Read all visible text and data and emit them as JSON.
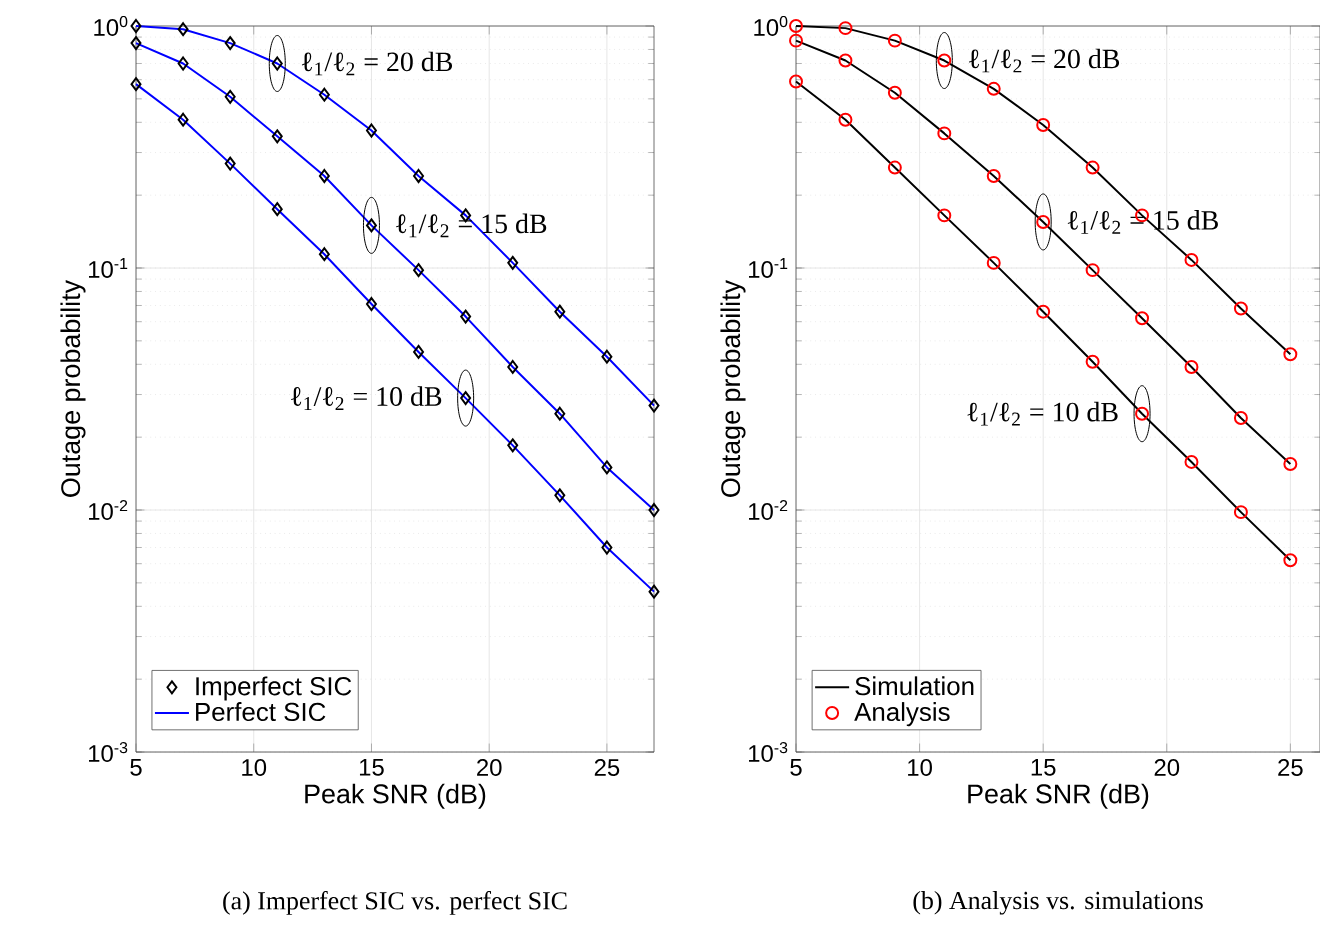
{
  "chart_data": [
    {
      "type": "line",
      "xlabel": "Peak SNR (dB)",
      "ylabel": "Outage probability",
      "log": "y",
      "grid": true,
      "legend": "bottom left",
      "xlim": [
        5,
        27
      ],
      "ylim": [
        0.001,
        1
      ],
      "xticks": [
        5,
        10,
        15,
        20,
        25
      ],
      "yticks": [
        {
          "value": 0.001,
          "label": "10$^{-3}$"
        },
        {
          "value": 0.01,
          "label": "10$^{-2}$"
        },
        {
          "value": 0.1,
          "label": "10$^{-1}$"
        },
        {
          "value": 1,
          "label": "10$^{0}$"
        }
      ],
      "x": [
        5,
        7,
        9,
        11,
        13,
        15,
        17,
        19,
        21,
        23,
        25,
        27
      ],
      "series": [
        {
          "name": "Imperfect SIC",
          "type": "scatter",
          "marker": "diamond",
          "color": "#000000",
          "values": [
            1.0,
            0.97,
            0.85,
            0.7,
            0.52,
            0.37,
            0.24,
            0.165,
            0.105,
            0.066,
            0.043,
            0.027
          ]
        },
        {
          "type": "scatter",
          "marker": "diamond",
          "color": "#000000",
          "values": [
            0.85,
            0.7,
            0.51,
            0.35,
            0.24,
            0.15,
            0.098,
            0.063,
            0.039,
            0.025,
            0.015,
            0.01
          ]
        },
        {
          "type": "scatter",
          "marker": "diamond",
          "color": "#000000",
          "values": [
            0.575,
            0.41,
            0.27,
            0.175,
            0.114,
            0.071,
            0.045,
            0.029,
            0.0185,
            0.0115,
            0.007,
            0.0046
          ]
        },
        {
          "name": "Perfect SIC",
          "marker": "none",
          "color": "#0000ff",
          "values": [
            1.0,
            0.97,
            0.85,
            0.7,
            0.52,
            0.37,
            0.24,
            0.165,
            0.105,
            0.066,
            0.043,
            0.027
          ]
        },
        {
          "marker": "none",
          "color": "#0000ff",
          "values": [
            0.85,
            0.7,
            0.51,
            0.35,
            0.24,
            0.15,
            0.098,
            0.063,
            0.039,
            0.025,
            0.015,
            0.01
          ]
        },
        {
          "marker": "none",
          "color": "#0000ff",
          "values": [
            0.575,
            0.41,
            0.27,
            0.175,
            0.114,
            0.071,
            0.045,
            0.029,
            0.0185,
            0.0115,
            0.007,
            0.0046
          ]
        }
      ],
      "annotations": [
        {
          "text": "ℓ$_{1}$/ℓ$_{2}$ = 20 dB",
          "x": 11,
          "y": 0.7
        },
        {
          "text": "ℓ$_{1}$/ℓ$_{2}$ = 15 dB",
          "x": 15,
          "y": 0.15
        },
        {
          "text": "ℓ$_{1}$/ℓ$_{2}$ = 10 dB",
          "x": 19,
          "y": 0.029
        },
        "(a) Imperfect SIC vs. perfect SIC"
      ]
    },
    {
      "type": "line",
      "xlabel": "Peak SNR (dB)",
      "ylabel": "Outage probability",
      "log": "y",
      "grid": true,
      "legend": "bottom left",
      "xlim": [
        5,
        26.2
      ],
      "ylim": [
        0.001,
        1
      ],
      "xticks": [
        5,
        10,
        15,
        20,
        25
      ],
      "yticks": [
        {
          "value": 0.001,
          "label": "10$^{-3}$"
        },
        {
          "value": 0.01,
          "label": "10$^{-2}$"
        },
        {
          "value": 0.1,
          "label": "10$^{-1}$"
        },
        {
          "value": 1,
          "label": "10$^{0}$"
        }
      ],
      "x": [
        5,
        7,
        9,
        11,
        13,
        15,
        17,
        19,
        21,
        23,
        25
      ],
      "series": [
        {
          "name": "Simulation",
          "marker": "none",
          "color": "#000000",
          "values": [
            1.0,
            0.98,
            0.87,
            0.72,
            0.55,
            0.39,
            0.26,
            0.165,
            0.108,
            0.068,
            0.044
          ]
        },
        {
          "marker": "none",
          "color": "#000000",
          "values": [
            0.87,
            0.72,
            0.53,
            0.36,
            0.24,
            0.155,
            0.098,
            0.062,
            0.039,
            0.024,
            0.0155
          ]
        },
        {
          "marker": "none",
          "color": "#000000",
          "values": [
            0.59,
            0.41,
            0.26,
            0.165,
            0.105,
            0.066,
            0.041,
            0.025,
            0.0158,
            0.0098,
            0.0062
          ]
        },
        {
          "name": "Analysis",
          "type": "scatter",
          "marker": "circle",
          "color": "#ff0000",
          "values": [
            1.0,
            0.98,
            0.87,
            0.72,
            0.55,
            0.39,
            0.26,
            0.165,
            0.108,
            0.068,
            0.044
          ]
        },
        {
          "type": "scatter",
          "marker": "circle",
          "color": "#ff0000",
          "values": [
            0.87,
            0.72,
            0.53,
            0.36,
            0.24,
            0.155,
            0.098,
            0.062,
            0.039,
            0.024,
            0.0155
          ]
        },
        {
          "type": "scatter",
          "marker": "circle",
          "color": "#ff0000",
          "values": [
            0.59,
            0.41,
            0.26,
            0.165,
            0.105,
            0.066,
            0.041,
            0.025,
            0.0158,
            0.0098,
            0.0062
          ]
        }
      ],
      "annotations": [
        {
          "text": "ℓ$_{1}$/ℓ$_{2}$ = 20 dB",
          "x": 11,
          "y": 0.72
        },
        {
          "text": "ℓ$_{1}$/ℓ$_{2}$ = 15 dB",
          "x": 15,
          "y": 0.155
        },
        {
          "text": "ℓ$_{1}$/ℓ$_{2}$ = 10 dB",
          "x": 19,
          "y": 0.025
        },
        "(b) Analysis vs. simulations"
      ]
    }
  ]
}
